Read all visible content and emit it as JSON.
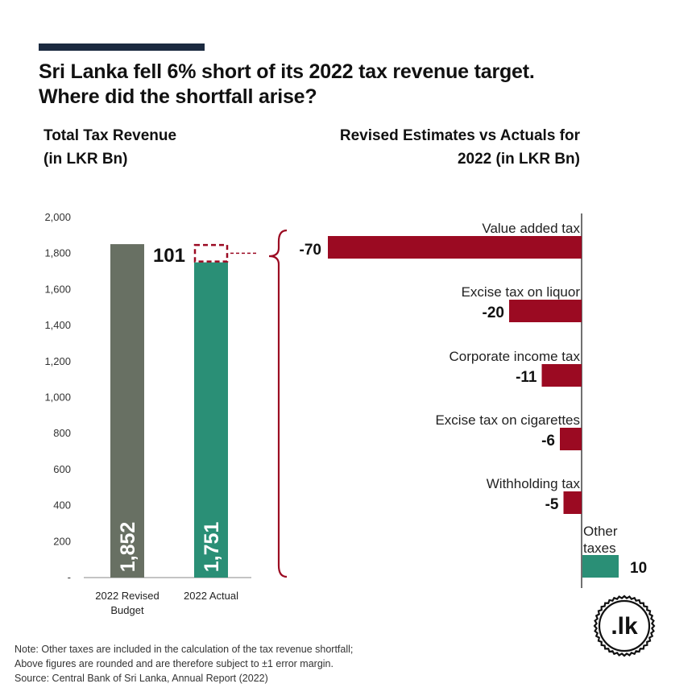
{
  "title_lines": [
    "Sri Lanka fell 6% short of its 2022 tax revenue target.",
    "Where did the shortfall arise?"
  ],
  "left_subtitle_lines": [
    "Total Tax Revenue",
    "(in LKR Bn)"
  ],
  "right_subtitle_lines": [
    "Revised Estimates vs Actuals for",
    "2022 (in LKR Bn)"
  ],
  "colors": {
    "budget": "#687063",
    "actual": "#2a8f76",
    "negative": "#9b0a22",
    "positive": "#2a8f76",
    "shortfall": "#9b0a22",
    "title_bar": "#1b2a40"
  },
  "chart_data": [
    {
      "type": "bar",
      "title": "Total Tax Revenue (in LKR Bn)",
      "categories": [
        "2022 Revised Budget",
        "2022 Actual"
      ],
      "category_label_lines": [
        [
          "2022 Revised",
          "Budget"
        ],
        [
          "2022 Actual"
        ]
      ],
      "values": [
        1852,
        1751
      ],
      "value_labels": [
        "1,852",
        "1,751"
      ],
      "shortfall": {
        "value": 101,
        "label": "101"
      },
      "ylim": [
        0,
        2000
      ],
      "y_ticks": [
        0,
        200,
        400,
        600,
        800,
        1000,
        1200,
        1400,
        1600,
        1800,
        2000
      ],
      "y_tick_labels": [
        "-",
        "200",
        "400",
        "600",
        "800",
        "1,000",
        "1,200",
        "1,400",
        "1,600",
        "1,800",
        "2,000"
      ],
      "grid": false
    },
    {
      "type": "bar",
      "orientation": "horizontal",
      "title": "Revised Estimates vs Actuals for 2022 (in LKR Bn)",
      "categories": [
        "Value added tax",
        "Excise tax on liquor",
        "Corporate income tax",
        "Excise tax on cigarettes",
        "Withholding tax",
        "Other taxes"
      ],
      "category_label_lines": [
        [
          "Value added tax"
        ],
        [
          "Excise tax on liquor"
        ],
        [
          "Corporate income tax"
        ],
        [
          "Excise tax on cigarettes"
        ],
        [
          "Withholding tax"
        ],
        [
          "Other",
          "taxes"
        ]
      ],
      "values": [
        -70,
        -20,
        -11,
        -6,
        -5,
        10
      ],
      "value_labels": [
        "-70",
        "-20",
        "-11",
        "-6",
        "-5",
        "10"
      ],
      "grid": false
    }
  ],
  "notes": [
    "Note: Other taxes are included in the calculation of the tax revenue shortfall;",
    "Above figures are rounded and are therefore subject to ±1 error margin.",
    "Source: Central Bank of Sri Lanka, Annual Report (2022)"
  ],
  "logo": {
    "text": ".lk",
    "icon": "lk-logo-icon"
  }
}
